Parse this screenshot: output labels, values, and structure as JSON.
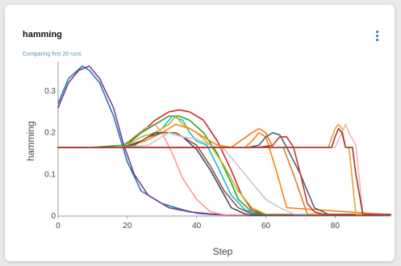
{
  "panel": {
    "title": "hamming",
    "subtitle": "Comparing first 20 runs",
    "menu_icon": "kebab-menu-icon"
  },
  "chart_data": {
    "type": "line",
    "xlabel": "Step",
    "ylabel": "hamming",
    "xlim": [
      0,
      96
    ],
    "ylim": [
      0,
      0.36
    ],
    "xticks": [
      "0",
      "20",
      "40",
      "60",
      "80"
    ],
    "yticks": [
      "0",
      "0.1",
      "0.2",
      "0.3"
    ],
    "grid": false,
    "legend": "none",
    "series": [
      {
        "color": "#1f77b4",
        "x": [
          0,
          3,
          7,
          9,
          12,
          16,
          20,
          24,
          30,
          36,
          40,
          44,
          50,
          60,
          96
        ],
        "y": [
          0.27,
          0.33,
          0.36,
          0.35,
          0.32,
          0.24,
          0.13,
          0.06,
          0.03,
          0.015,
          0.007,
          0.004,
          0.002,
          0.002,
          0.002
        ]
      },
      {
        "color": "#7b3f8f",
        "x": [
          0,
          3,
          6,
          9,
          12,
          16,
          19,
          22,
          26,
          32,
          38,
          44,
          50,
          96
        ],
        "y": [
          0.26,
          0.32,
          0.35,
          0.36,
          0.33,
          0.26,
          0.17,
          0.1,
          0.05,
          0.02,
          0.01,
          0.005,
          0.002,
          0.002
        ]
      },
      {
        "color": "#d62728",
        "x": [
          0,
          10,
          19,
          24,
          28,
          32,
          35,
          38,
          42,
          46,
          50,
          53,
          56,
          60,
          96
        ],
        "y": [
          0.165,
          0.165,
          0.165,
          0.2,
          0.23,
          0.25,
          0.255,
          0.25,
          0.23,
          0.18,
          0.11,
          0.05,
          0.015,
          0.003,
          0.003
        ]
      },
      {
        "color": "#ff9896",
        "x": [
          0,
          10,
          19,
          22,
          25,
          28,
          30,
          33,
          36,
          40,
          44,
          48,
          96
        ],
        "y": [
          0.165,
          0.165,
          0.165,
          0.19,
          0.21,
          0.22,
          0.2,
          0.15,
          0.09,
          0.04,
          0.01,
          0.003,
          0.003
        ]
      },
      {
        "color": "#2ca02c",
        "x": [
          0,
          10,
          19,
          24,
          28,
          32,
          35,
          38,
          42,
          46,
          50,
          52,
          56,
          60,
          96
        ],
        "y": [
          0.165,
          0.165,
          0.17,
          0.2,
          0.22,
          0.24,
          0.24,
          0.23,
          0.2,
          0.15,
          0.08,
          0.04,
          0.01,
          0.003,
          0.003
        ]
      },
      {
        "color": "#17becf",
        "x": [
          0,
          10,
          19,
          24,
          28,
          30,
          33,
          36,
          38,
          40,
          43,
          46,
          50,
          54,
          58,
          96
        ],
        "y": [
          0.165,
          0.165,
          0.165,
          0.18,
          0.2,
          0.21,
          0.24,
          0.23,
          0.2,
          0.18,
          0.17,
          0.12,
          0.05,
          0.015,
          0.003,
          0.003
        ]
      },
      {
        "color": "#bcbd22",
        "x": [
          0,
          10,
          19,
          24,
          28,
          32,
          34,
          36,
          40,
          44,
          48,
          52,
          56,
          60,
          96
        ],
        "y": [
          0.165,
          0.165,
          0.165,
          0.19,
          0.2,
          0.22,
          0.24,
          0.22,
          0.2,
          0.17,
          0.12,
          0.06,
          0.02,
          0.004,
          0.004
        ]
      },
      {
        "color": "#ff7f0e",
        "x": [
          0,
          10,
          19,
          25,
          30,
          34,
          38,
          42,
          46,
          50,
          54,
          56,
          58,
          60,
          63,
          66,
          96
        ],
        "y": [
          0.165,
          0.165,
          0.165,
          0.18,
          0.2,
          0.22,
          0.21,
          0.19,
          0.17,
          0.165,
          0.165,
          0.18,
          0.2,
          0.19,
          0.11,
          0.02,
          0.003
        ]
      },
      {
        "color": "#3f4f5f",
        "x": [
          0,
          19,
          24,
          28,
          32,
          36,
          40,
          44,
          48,
          50,
          54,
          56,
          96
        ],
        "y": [
          0.165,
          0.165,
          0.18,
          0.2,
          0.2,
          0.19,
          0.16,
          0.11,
          0.05,
          0.02,
          0.005,
          0.002,
          0.002
        ]
      },
      {
        "color": "#8c564b",
        "x": [
          0,
          19,
          22,
          26,
          30,
          34,
          36,
          40,
          44,
          48,
          52,
          56,
          60,
          96
        ],
        "y": [
          0.165,
          0.165,
          0.17,
          0.19,
          0.2,
          0.2,
          0.19,
          0.17,
          0.12,
          0.06,
          0.02,
          0.005,
          0.003,
          0.003
        ]
      },
      {
        "color": "#c7c7c7",
        "x": [
          0,
          19,
          26,
          32,
          36,
          40,
          44,
          48,
          52,
          56,
          60,
          64,
          68,
          96
        ],
        "y": [
          0.165,
          0.165,
          0.17,
          0.2,
          0.19,
          0.185,
          0.17,
          0.16,
          0.12,
          0.08,
          0.04,
          0.02,
          0.005,
          0.003
        ]
      },
      {
        "color": "#e67e22",
        "x": [
          0,
          19,
          40,
          50,
          56,
          58,
          60,
          62,
          65,
          68,
          72,
          96
        ],
        "y": [
          0.165,
          0.165,
          0.165,
          0.165,
          0.2,
          0.21,
          0.2,
          0.165,
          0.165,
          0.1,
          0.004,
          0.004
        ]
      },
      {
        "color": "#556070",
        "x": [
          0,
          19,
          40,
          50,
          55,
          58,
          60,
          62,
          64,
          66,
          70,
          74,
          78,
          96
        ],
        "y": [
          0.165,
          0.165,
          0.165,
          0.165,
          0.165,
          0.17,
          0.19,
          0.2,
          0.195,
          0.165,
          0.1,
          0.02,
          0.004,
          0.004
        ]
      },
      {
        "color": "#c0392b",
        "x": [
          0,
          19,
          40,
          55,
          58,
          62,
          64,
          66,
          68,
          70,
          72,
          74,
          77,
          80,
          96
        ],
        "y": [
          0.165,
          0.165,
          0.165,
          0.165,
          0.165,
          0.17,
          0.19,
          0.19,
          0.165,
          0.1,
          0.03,
          0.01,
          0.003,
          0.003,
          0.003
        ]
      },
      {
        "color": "#e6a23c",
        "x": [
          0,
          19,
          40,
          60,
          78,
          80,
          81,
          82,
          83,
          84,
          86,
          96
        ],
        "y": [
          0.165,
          0.165,
          0.165,
          0.165,
          0.165,
          0.21,
          0.22,
          0.21,
          0.165,
          0.165,
          0.004,
          0.004
        ]
      },
      {
        "color": "#f5b7b1",
        "x": [
          0,
          19,
          40,
          60,
          80,
          82,
          83,
          84,
          86,
          88,
          96
        ],
        "y": [
          0.165,
          0.165,
          0.165,
          0.165,
          0.165,
          0.2,
          0.22,
          0.2,
          0.17,
          0.004,
          0.004
        ]
      },
      {
        "color": "#a93226",
        "x": [
          0,
          19,
          40,
          60,
          79,
          80,
          81,
          82,
          83,
          84,
          85,
          86,
          88,
          96
        ],
        "y": [
          0.165,
          0.165,
          0.165,
          0.165,
          0.165,
          0.19,
          0.21,
          0.2,
          0.165,
          0.165,
          0.165,
          0.1,
          0.004,
          0.004
        ]
      }
    ]
  }
}
